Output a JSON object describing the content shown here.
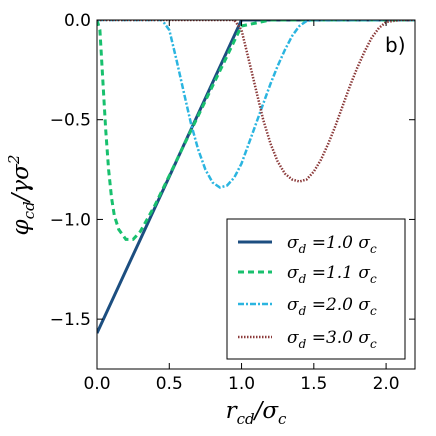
{
  "chart_data": {
    "type": "line",
    "panel_label": "b)",
    "xlabel": {
      "main": "r",
      "main_sub": "cd",
      "slash": "/",
      "den": "σ",
      "den_sub": "c"
    },
    "ylabel": {
      "main": "φ",
      "main_sub": "cd",
      "slash": "/",
      "den": "γσ",
      "den_sup": "2"
    },
    "xlim": [
      0.0,
      2.2
    ],
    "ylim": [
      -1.75,
      0.0
    ],
    "xticks": [
      0.0,
      0.5,
      1.0,
      1.5,
      2.0
    ],
    "xtick_labels": [
      "0.0",
      "0.5",
      "1.0",
      "1.5",
      "2.0"
    ],
    "yticks": [
      0.0,
      -0.5,
      -1.0,
      -1.5
    ],
    "ytick_labels": [
      "0.0",
      "−0.5",
      "−1.0",
      "−1.5"
    ],
    "grid": false,
    "legend_position": "bottom-right",
    "series": [
      {
        "name": "σd = 1.0 σc",
        "legend": {
          "sym": "σ",
          "sub": "d",
          "rest": " =1.0 ",
          "sym2": "σ",
          "sub2": "c"
        },
        "color": "#1c4e80",
        "dash": "",
        "stroke_width": 3,
        "x": [
          0.0,
          0.1,
          0.2,
          0.3,
          0.4,
          0.5,
          0.6,
          0.7,
          0.8,
          0.9,
          1.0,
          1.2,
          1.4,
          1.6,
          1.8,
          2.0,
          2.2
        ],
        "y": [
          -1.57,
          -1.413,
          -1.256,
          -1.099,
          -0.942,
          -0.785,
          -0.628,
          -0.471,
          -0.314,
          -0.157,
          0.0,
          0.0,
          0.0,
          0.0,
          0.0,
          0.0,
          0.0
        ]
      },
      {
        "name": "σd = 1.1 σc",
        "legend": {
          "sym": "σ",
          "sub": "d",
          "rest": " =1.1 ",
          "sym2": "σ",
          "sub2": "c"
        },
        "color": "#18c06e",
        "dash": "6 4",
        "stroke_width": 3,
        "x": [
          0.0,
          0.02,
          0.04,
          0.06,
          0.08,
          0.1,
          0.12,
          0.15,
          0.2,
          0.25,
          0.3,
          0.4,
          0.5,
          0.6,
          0.7,
          0.8,
          0.9,
          1.0,
          1.2,
          1.4,
          1.6,
          1.8,
          2.0,
          2.2
        ],
        "y": [
          0.0,
          -0.05,
          -0.3,
          -0.55,
          -0.75,
          -0.89,
          -0.98,
          -1.05,
          -1.1,
          -1.1,
          -1.06,
          -0.93,
          -0.78,
          -0.63,
          -0.48,
          -0.33,
          -0.18,
          -0.03,
          0.0,
          0.0,
          0.0,
          0.0,
          0.0,
          0.0
        ]
      },
      {
        "name": "σd = 2.0 σc",
        "legend": {
          "sym": "σ",
          "sub": "d",
          "rest": " =2.0 ",
          "sym2": "σ",
          "sub2": "c"
        },
        "color": "#2bb5e0",
        "dash": "6 2 2 2",
        "stroke_width": 2.5,
        "x": [
          0.0,
          0.2,
          0.4,
          0.45,
          0.5,
          0.55,
          0.6,
          0.65,
          0.7,
          0.75,
          0.8,
          0.85,
          0.9,
          0.95,
          1.0,
          1.05,
          1.1,
          1.15,
          1.2,
          1.25,
          1.3,
          1.35,
          1.4,
          1.45,
          1.5,
          1.6,
          1.8,
          2.0,
          2.2
        ],
        "y": [
          0.0,
          0.0,
          0.0,
          0.0,
          -0.05,
          -0.2,
          -0.36,
          -0.52,
          -0.65,
          -0.75,
          -0.815,
          -0.84,
          -0.83,
          -0.79,
          -0.72,
          -0.62,
          -0.52,
          -0.42,
          -0.32,
          -0.23,
          -0.15,
          -0.08,
          -0.03,
          -0.005,
          0.0,
          0.0,
          0.0,
          0.0,
          0.0
        ]
      },
      {
        "name": "σd = 3.0 σc",
        "legend": {
          "sym": "σ",
          "sub": "d",
          "rest": " =3.0 ",
          "sym2": "σ",
          "sub2": "c"
        },
        "color": "#8b3a3a",
        "dash": "1.5 1.5",
        "stroke_width": 2.5,
        "x": [
          0.0,
          0.5,
          0.95,
          1.0,
          1.05,
          1.1,
          1.15,
          1.2,
          1.25,
          1.3,
          1.35,
          1.4,
          1.45,
          1.5,
          1.55,
          1.6,
          1.65,
          1.7,
          1.75,
          1.8,
          1.85,
          1.9,
          1.95,
          2.0,
          2.1,
          2.2
        ],
        "y": [
          0.0,
          0.0,
          0.0,
          -0.05,
          -0.2,
          -0.35,
          -0.5,
          -0.62,
          -0.71,
          -0.77,
          -0.8,
          -0.81,
          -0.8,
          -0.76,
          -0.7,
          -0.62,
          -0.53,
          -0.43,
          -0.33,
          -0.24,
          -0.16,
          -0.09,
          -0.04,
          -0.01,
          0.0,
          0.0
        ]
      }
    ]
  }
}
